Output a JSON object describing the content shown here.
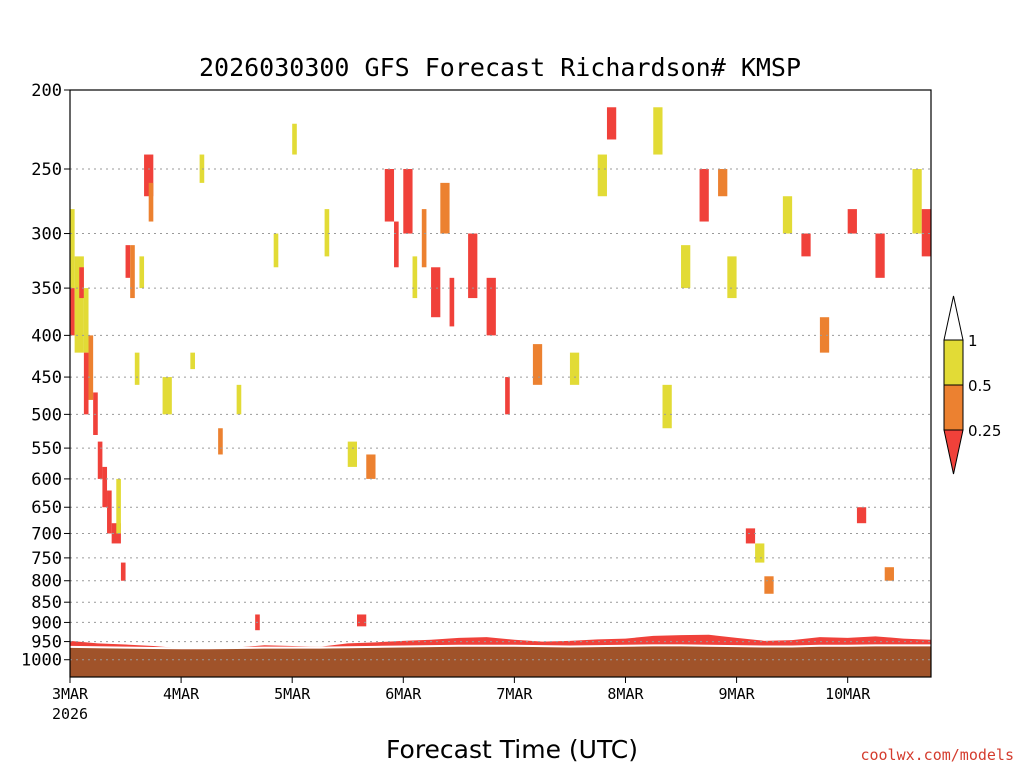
{
  "chart_data": {
    "type": "heatmap",
    "title": "2026030300 GFS Forecast Richardson# KMSP",
    "xlabel": "Forecast Time (UTC)",
    "ylabel": "",
    "credit": "coolwx.com/models",
    "y_scale": "log",
    "ylim": [
      1000,
      200
    ],
    "y_ticks": [
      200,
      250,
      300,
      350,
      400,
      450,
      500,
      550,
      600,
      650,
      700,
      750,
      800,
      850,
      900,
      950,
      1000
    ],
    "x_ticks": [
      "3MAR",
      "4MAR",
      "5MAR",
      "6MAR",
      "7MAR",
      "8MAR",
      "9MAR",
      "10MAR"
    ],
    "x_year_label": "2026",
    "xlim_hours": [
      0,
      186
    ],
    "colorbar": {
      "levels": [
        "0.25",
        "0.5",
        "1"
      ],
      "colors": {
        "lt_025": "#f0413a",
        "025_05": "#ec8130",
        "05_1": "#e2db36",
        "gt_1": "#ffffff"
      }
    },
    "colors": {
      "below_ground": "#a0532a",
      "freezing_line": "#ffffff"
    },
    "values": {
      "note_format": "[hour_start, hour_end, p_top_hPa, p_bottom_hPa, category]",
      "cells": [
        [
          0,
          1,
          280,
          350,
          "05_1"
        ],
        [
          0,
          1,
          350,
          400,
          "lt_025"
        ],
        [
          1,
          3,
          320,
          420,
          "05_1"
        ],
        [
          2,
          3,
          330,
          360,
          "lt_025"
        ],
        [
          3,
          4,
          350,
          420,
          "05_1"
        ],
        [
          3,
          4,
          420,
          500,
          "lt_025"
        ],
        [
          4,
          5,
          400,
          480,
          "025_05"
        ],
        [
          5,
          6,
          470,
          530,
          "lt_025"
        ],
        [
          6,
          7,
          540,
          600,
          "lt_025"
        ],
        [
          7,
          8,
          580,
          650,
          "lt_025"
        ],
        [
          8,
          9,
          620,
          700,
          "lt_025"
        ],
        [
          9,
          11,
          680,
          720,
          "lt_025"
        ],
        [
          11,
          12,
          760,
          800,
          "lt_025"
        ],
        [
          10,
          11,
          600,
          700,
          "05_1"
        ],
        [
          12,
          13,
          310,
          340,
          "lt_025"
        ],
        [
          13,
          14,
          310,
          360,
          "025_05"
        ],
        [
          14,
          15,
          420,
          460,
          "05_1"
        ],
        [
          15,
          16,
          320,
          350,
          "05_1"
        ],
        [
          16,
          18,
          240,
          270,
          "lt_025"
        ],
        [
          17,
          18,
          260,
          290,
          "025_05"
        ],
        [
          20,
          22,
          450,
          500,
          "05_1"
        ],
        [
          26,
          27,
          420,
          440,
          "05_1"
        ],
        [
          28,
          29,
          240,
          260,
          "05_1"
        ],
        [
          32,
          33,
          520,
          560,
          "025_05"
        ],
        [
          36,
          37,
          460,
          500,
          "05_1"
        ],
        [
          40,
          41,
          880,
          920,
          "lt_025"
        ],
        [
          44,
          45,
          300,
          330,
          "05_1"
        ],
        [
          48,
          49,
          220,
          240,
          "05_1"
        ],
        [
          55,
          56,
          280,
          320,
          "05_1"
        ],
        [
          60,
          62,
          540,
          580,
          "05_1"
        ],
        [
          62,
          64,
          880,
          910,
          "lt_025"
        ],
        [
          64,
          66,
          560,
          600,
          "025_05"
        ],
        [
          68,
          70,
          250,
          290,
          "lt_025"
        ],
        [
          70,
          71,
          290,
          330,
          "lt_025"
        ],
        [
          72,
          74,
          250,
          300,
          "lt_025"
        ],
        [
          74,
          75,
          320,
          360,
          "05_1"
        ],
        [
          76,
          77,
          280,
          330,
          "025_05"
        ],
        [
          78,
          80,
          330,
          380,
          "lt_025"
        ],
        [
          80,
          82,
          260,
          300,
          "025_05"
        ],
        [
          82,
          83,
          340,
          390,
          "lt_025"
        ],
        [
          86,
          88,
          300,
          360,
          "lt_025"
        ],
        [
          90,
          92,
          340,
          400,
          "lt_025"
        ],
        [
          94,
          95,
          450,
          500,
          "lt_025"
        ],
        [
          100,
          102,
          410,
          460,
          "025_05"
        ],
        [
          108,
          110,
          420,
          460,
          "05_1"
        ],
        [
          114,
          116,
          240,
          270,
          "05_1"
        ],
        [
          116,
          118,
          210,
          230,
          "lt_025"
        ],
        [
          126,
          128,
          210,
          240,
          "05_1"
        ],
        [
          128,
          130,
          460,
          520,
          "05_1"
        ],
        [
          132,
          134,
          310,
          350,
          "05_1"
        ],
        [
          136,
          138,
          250,
          290,
          "lt_025"
        ],
        [
          140,
          142,
          250,
          270,
          "025_05"
        ],
        [
          142,
          144,
          320,
          360,
          "05_1"
        ],
        [
          146,
          148,
          690,
          720,
          "lt_025"
        ],
        [
          148,
          150,
          720,
          760,
          "05_1"
        ],
        [
          150,
          152,
          790,
          830,
          "025_05"
        ],
        [
          154,
          156,
          270,
          300,
          "05_1"
        ],
        [
          158,
          160,
          300,
          320,
          "lt_025"
        ],
        [
          162,
          164,
          380,
          420,
          "025_05"
        ],
        [
          168,
          170,
          280,
          300,
          "lt_025"
        ],
        [
          170,
          172,
          650,
          680,
          "lt_025"
        ],
        [
          174,
          176,
          300,
          340,
          "lt_025"
        ],
        [
          176,
          178,
          770,
          800,
          "025_05"
        ],
        [
          182,
          184,
          250,
          300,
          "05_1"
        ],
        [
          184,
          186,
          280,
          320,
          "lt_025"
        ]
      ],
      "note_surface": "[hour, bl_top_hPa, ground_top_hPa]",
      "surface": [
        [
          0,
          948,
          967
        ],
        [
          6,
          955,
          968
        ],
        [
          12,
          958,
          969
        ],
        [
          18,
          962,
          970
        ],
        [
          24,
          968,
          971
        ],
        [
          30,
          968,
          971
        ],
        [
          36,
          966,
          970
        ],
        [
          42,
          960,
          969
        ],
        [
          48,
          962,
          969
        ],
        [
          54,
          964,
          969
        ],
        [
          60,
          955,
          968
        ],
        [
          66,
          952,
          967
        ],
        [
          72,
          948,
          966
        ],
        [
          78,
          945,
          965
        ],
        [
          84,
          940,
          964
        ],
        [
          90,
          938,
          964
        ],
        [
          96,
          945,
          964
        ],
        [
          102,
          950,
          965
        ],
        [
          108,
          948,
          966
        ],
        [
          114,
          944,
          965
        ],
        [
          120,
          942,
          964
        ],
        [
          126,
          935,
          963
        ],
        [
          132,
          933,
          963
        ],
        [
          138,
          932,
          964
        ],
        [
          144,
          940,
          965
        ],
        [
          150,
          948,
          966
        ],
        [
          156,
          946,
          966
        ],
        [
          162,
          938,
          964
        ],
        [
          168,
          940,
          964
        ],
        [
          174,
          936,
          963
        ],
        [
          180,
          942,
          963
        ],
        [
          186,
          945,
          963
        ]
      ]
    }
  }
}
